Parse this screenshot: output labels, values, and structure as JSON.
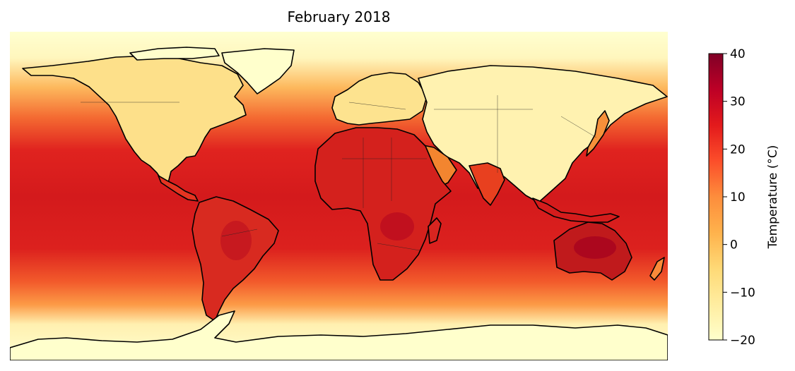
{
  "title": "February 2018",
  "colorbar": {
    "label": "Temperature (°C)",
    "min": -20,
    "max": 40,
    "ticks": [
      {
        "value": 40,
        "label": "40"
      },
      {
        "value": 30,
        "label": "30"
      },
      {
        "value": 20,
        "label": "20"
      },
      {
        "value": 10,
        "label": "10"
      },
      {
        "value": 0,
        "label": "0"
      },
      {
        "value": -10,
        "label": "−10"
      },
      {
        "value": -20,
        "label": "−20"
      }
    ],
    "colormap": "YlOrRd",
    "colors": [
      "#ffffcc",
      "#ffeda0",
      "#fed976",
      "#feb24c",
      "#fd8d3c",
      "#fc4e2a",
      "#e31a1c",
      "#bd0026",
      "#800026"
    ]
  },
  "map": {
    "projection": "PlateCarree",
    "variable": "surface air temperature",
    "coastlines": true,
    "borders": true
  }
}
